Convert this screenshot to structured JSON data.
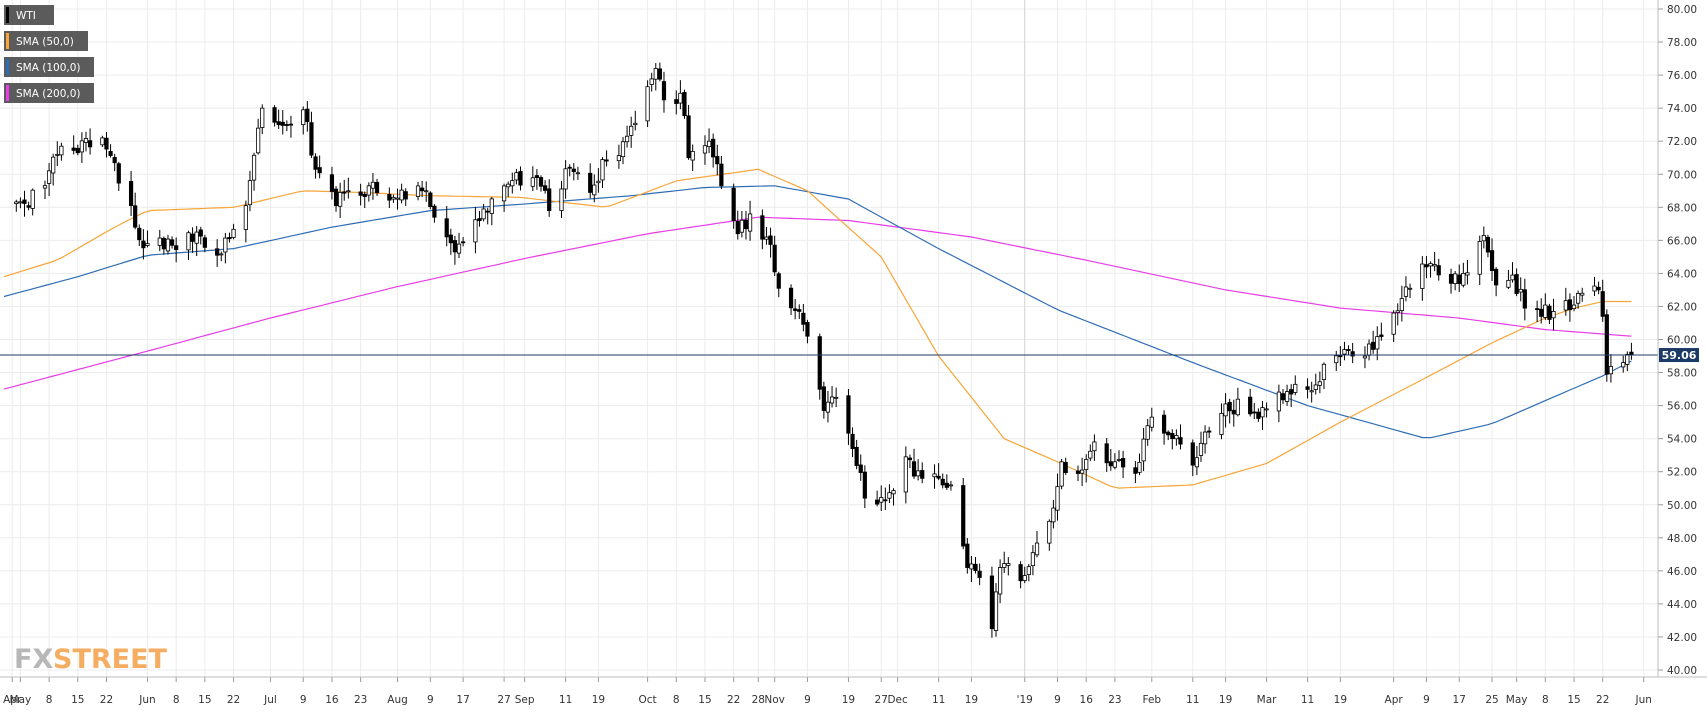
{
  "colors": {
    "background": "#ffffff",
    "grid": "#ececec",
    "candle_up_fill": "#ffffff",
    "candle_down_fill": "#000000",
    "candle_outline": "#000000",
    "price_line": "#1c3a66",
    "price_tag": "#1c3a66",
    "legend_box": "#5b5b5b",
    "sma50": "#f7a539",
    "sma100": "#2e6db4",
    "sma200": "#e83ce8"
  },
  "watermark": {
    "part1": "FX",
    "part2": "STREET"
  },
  "chart_data": {
    "type": "candlestick",
    "symbol": "WTI",
    "current_price": 59.06,
    "current_price_label": "59.06",
    "y_axis": {
      "min": 39.0,
      "max": 80.6,
      "ticks": [
        "40.00",
        "42.00",
        "44.00",
        "46.00",
        "48.00",
        "50.00",
        "52.00",
        "54.00",
        "56.00",
        "58.00",
        "60.00",
        "62.00",
        "64.00",
        "66.00",
        "68.00",
        "70.00",
        "72.00",
        "74.00",
        "76.00",
        "78.00",
        "80.00"
      ],
      "side": "right"
    },
    "x_axis": {
      "start_date": "2018-04-27",
      "end_date": "2019-06-04",
      "ticks": [
        {
          "date": "2018-04-29",
          "label": "Apr"
        },
        {
          "date": "2018-05-01",
          "label": "May"
        },
        {
          "date": "2018-05-08",
          "label": "8"
        },
        {
          "date": "2018-05-15",
          "label": "15"
        },
        {
          "date": "2018-05-22",
          "label": "22"
        },
        {
          "date": "2018-06-01",
          "label": "Jun"
        },
        {
          "date": "2018-06-08",
          "label": "8"
        },
        {
          "date": "2018-06-15",
          "label": "15"
        },
        {
          "date": "2018-06-22",
          "label": "22"
        },
        {
          "date": "2018-07-01",
          "label": "Jul"
        },
        {
          "date": "2018-07-09",
          "label": "9"
        },
        {
          "date": "2018-07-16",
          "label": "16"
        },
        {
          "date": "2018-07-23",
          "label": "23"
        },
        {
          "date": "2018-08-01",
          "label": "Aug"
        },
        {
          "date": "2018-08-09",
          "label": "9"
        },
        {
          "date": "2018-08-17",
          "label": "17"
        },
        {
          "date": "2018-08-27",
          "label": "27"
        },
        {
          "date": "2018-09-01",
          "label": "Sep"
        },
        {
          "date": "2018-09-11",
          "label": "11"
        },
        {
          "date": "2018-09-19",
          "label": "19"
        },
        {
          "date": "2018-10-01",
          "label": "Oct"
        },
        {
          "date": "2018-10-08",
          "label": "8"
        },
        {
          "date": "2018-10-15",
          "label": "15"
        },
        {
          "date": "2018-10-22",
          "label": "22"
        },
        {
          "date": "2018-10-28",
          "label": "28"
        },
        {
          "date": "2018-11-01",
          "label": "Nov"
        },
        {
          "date": "2018-11-09",
          "label": "9"
        },
        {
          "date": "2018-11-19",
          "label": "19"
        },
        {
          "date": "2018-11-27",
          "label": "27"
        },
        {
          "date": "2018-12-01",
          "label": "Dec"
        },
        {
          "date": "2018-12-11",
          "label": "11"
        },
        {
          "date": "2018-12-19",
          "label": "19"
        },
        {
          "date": "2019-01-01",
          "label": "'19"
        },
        {
          "date": "2019-01-09",
          "label": "9"
        },
        {
          "date": "2019-01-16",
          "label": "16"
        },
        {
          "date": "2019-01-23",
          "label": "23"
        },
        {
          "date": "2019-02-01",
          "label": "Feb"
        },
        {
          "date": "2019-02-11",
          "label": "11"
        },
        {
          "date": "2019-02-19",
          "label": "19"
        },
        {
          "date": "2019-03-01",
          "label": "Mar"
        },
        {
          "date": "2019-03-11",
          "label": "11"
        },
        {
          "date": "2019-03-19",
          "label": "19"
        },
        {
          "date": "2019-04-01",
          "label": "Apr"
        },
        {
          "date": "2019-04-09",
          "label": "9"
        },
        {
          "date": "2019-04-17",
          "label": "17"
        },
        {
          "date": "2019-04-25",
          "label": "25"
        },
        {
          "date": "2019-05-01",
          "label": "May"
        },
        {
          "date": "2019-05-08",
          "label": "8"
        },
        {
          "date": "2019-05-15",
          "label": "15"
        },
        {
          "date": "2019-05-22",
          "label": "22"
        },
        {
          "date": "2019-06-01",
          "label": "Jun"
        }
      ],
      "year_separator": "2019-01-01"
    },
    "legend": [
      {
        "label": "WTI",
        "color_key": "candle_down_fill"
      },
      {
        "label": "SMA (50,0)",
        "color_key": "sma50"
      },
      {
        "label": "SMA (100,0)",
        "color_key": "sma100"
      },
      {
        "label": "SMA (200,0)",
        "color_key": "sma200"
      }
    ],
    "legend_position": "top-left",
    "grid": true,
    "close_anchors": [
      [
        "2018-04-27",
        68.3
      ],
      [
        "2018-05-03",
        68.0
      ],
      [
        "2018-05-10",
        71.2
      ],
      [
        "2018-05-15",
        71.3
      ],
      [
        "2018-05-21",
        72.2
      ],
      [
        "2018-05-24",
        70.7
      ],
      [
        "2018-05-29",
        66.8
      ],
      [
        "2018-06-01",
        65.8
      ],
      [
        "2018-06-07",
        65.7
      ],
      [
        "2018-06-13",
        66.5
      ],
      [
        "2018-06-18",
        65.1
      ],
      [
        "2018-06-21",
        66.1
      ],
      [
        "2018-06-25",
        68.1
      ],
      [
        "2018-06-29",
        74.0
      ],
      [
        "2018-07-03",
        73.0
      ],
      [
        "2018-07-09",
        73.9
      ],
      [
        "2018-07-12",
        70.3
      ],
      [
        "2018-07-17",
        68.1
      ],
      [
        "2018-07-20",
        69.0
      ],
      [
        "2018-07-25",
        69.3
      ],
      [
        "2018-07-31",
        68.6
      ],
      [
        "2018-08-03",
        68.5
      ],
      [
        "2018-08-07",
        69.0
      ],
      [
        "2018-08-10",
        67.4
      ],
      [
        "2018-08-15",
        65.3
      ],
      [
        "2018-08-17",
        65.9
      ],
      [
        "2018-08-22",
        67.9
      ],
      [
        "2018-08-28",
        69.4
      ],
      [
        "2018-09-04",
        69.8
      ],
      [
        "2018-09-07",
        67.8
      ],
      [
        "2018-09-12",
        70.4
      ],
      [
        "2018-09-17",
        68.9
      ],
      [
        "2018-09-21",
        70.8
      ],
      [
        "2018-09-26",
        72.3
      ],
      [
        "2018-10-01",
        75.3
      ],
      [
        "2018-10-03",
        76.4
      ],
      [
        "2018-10-05",
        74.5
      ],
      [
        "2018-10-09",
        74.9
      ],
      [
        "2018-10-11",
        71.0
      ],
      [
        "2018-10-16",
        72.0
      ],
      [
        "2018-10-19",
        69.3
      ],
      [
        "2018-10-23",
        66.4
      ],
      [
        "2018-10-26",
        67.6
      ],
      [
        "2018-10-30",
        66.2
      ],
      [
        "2018-11-02",
        63.1
      ],
      [
        "2018-11-07",
        61.7
      ],
      [
        "2018-11-09",
        60.2
      ],
      [
        "2018-11-13",
        55.7
      ],
      [
        "2018-11-16",
        56.5
      ],
      [
        "2018-11-20",
        53.4
      ],
      [
        "2018-11-23",
        50.4
      ],
      [
        "2018-11-28",
        50.3
      ],
      [
        "2018-12-03",
        52.9
      ],
      [
        "2018-12-07",
        51.6
      ],
      [
        "2018-12-12",
        51.2
      ],
      [
        "2018-12-14",
        51.2
      ],
      [
        "2018-12-18",
        46.2
      ],
      [
        "2018-12-21",
        45.6
      ],
      [
        "2018-12-24",
        42.5
      ],
      [
        "2018-12-26",
        46.2
      ],
      [
        "2018-12-31",
        45.4
      ],
      [
        "2019-01-03",
        47.1
      ],
      [
        "2019-01-08",
        49.8
      ],
      [
        "2019-01-10",
        52.6
      ],
      [
        "2019-01-15",
        52.1
      ],
      [
        "2019-01-18",
        53.8
      ],
      [
        "2019-01-23",
        52.6
      ],
      [
        "2019-01-28",
        51.9
      ],
      [
        "2019-02-01",
        55.3
      ],
      [
        "2019-02-06",
        54.0
      ],
      [
        "2019-02-11",
        52.4
      ],
      [
        "2019-02-14",
        54.4
      ],
      [
        "2019-02-19",
        56.1
      ],
      [
        "2019-02-25",
        55.5
      ],
      [
        "2019-03-01",
        55.8
      ],
      [
        "2019-03-07",
        56.7
      ],
      [
        "2019-03-12",
        56.9
      ],
      [
        "2019-03-15",
        58.5
      ],
      [
        "2019-03-19",
        59.0
      ],
      [
        "2019-03-22",
        59.0
      ],
      [
        "2019-03-27",
        59.4
      ],
      [
        "2019-04-01",
        61.6
      ],
      [
        "2019-04-05",
        63.1
      ],
      [
        "2019-04-10",
        64.6
      ],
      [
        "2019-04-15",
        63.4
      ],
      [
        "2019-04-18",
        64.0
      ],
      [
        "2019-04-23",
        66.3
      ],
      [
        "2019-04-26",
        63.3
      ],
      [
        "2019-04-30",
        63.9
      ],
      [
        "2019-05-03",
        61.9
      ],
      [
        "2019-05-07",
        61.4
      ],
      [
        "2019-05-10",
        61.7
      ],
      [
        "2019-05-14",
        61.8
      ],
      [
        "2019-05-17",
        62.8
      ],
      [
        "2019-05-21",
        63.0
      ],
      [
        "2019-05-22",
        61.4
      ],
      [
        "2019-05-23",
        57.9
      ],
      [
        "2019-05-27",
        58.6
      ],
      [
        "2019-05-28",
        59.1
      ],
      [
        "2019-05-29",
        59.06
      ]
    ],
    "sma50_points": [
      [
        "2018-04-27",
        63.8
      ],
      [
        "2018-05-10",
        64.8
      ],
      [
        "2018-05-24",
        66.8
      ],
      [
        "2018-06-01",
        67.8
      ],
      [
        "2018-06-22",
        68.0
      ],
      [
        "2018-07-09",
        69.0
      ],
      [
        "2018-07-23",
        68.9
      ],
      [
        "2018-08-09",
        68.7
      ],
      [
        "2018-08-31",
        68.6
      ],
      [
        "2018-09-21",
        68.0
      ],
      [
        "2018-10-08",
        69.6
      ],
      [
        "2018-10-28",
        70.3
      ],
      [
        "2018-11-09",
        69.0
      ],
      [
        "2018-11-27",
        65.0
      ],
      [
        "2018-12-11",
        59.0
      ],
      [
        "2018-12-27",
        54.0
      ],
      [
        "2019-01-09",
        52.6
      ],
      [
        "2019-01-23",
        51.0
      ],
      [
        "2019-02-11",
        51.2
      ],
      [
        "2019-03-01",
        52.5
      ],
      [
        "2019-03-19",
        55.0
      ],
      [
        "2019-04-09",
        57.7
      ],
      [
        "2019-04-25",
        59.8
      ],
      [
        "2019-05-08",
        61.3
      ],
      [
        "2019-05-15",
        61.9
      ],
      [
        "2019-05-22",
        62.3
      ],
      [
        "2019-05-29",
        62.3
      ]
    ],
    "sma100_points": [
      [
        "2018-04-27",
        62.6
      ],
      [
        "2018-05-15",
        63.8
      ],
      [
        "2018-06-01",
        65.1
      ],
      [
        "2018-06-22",
        65.5
      ],
      [
        "2018-07-16",
        66.8
      ],
      [
        "2018-08-09",
        67.8
      ],
      [
        "2018-09-01",
        68.2
      ],
      [
        "2018-09-27",
        68.7
      ],
      [
        "2018-10-15",
        69.2
      ],
      [
        "2018-11-01",
        69.3
      ],
      [
        "2018-11-19",
        68.5
      ],
      [
        "2018-12-11",
        65.5
      ],
      [
        "2019-01-09",
        61.8
      ],
      [
        "2019-02-11",
        58.6
      ],
      [
        "2019-03-11",
        56.0
      ],
      [
        "2019-04-09",
        54.0
      ],
      [
        "2019-04-25",
        54.9
      ],
      [
        "2019-05-08",
        56.3
      ],
      [
        "2019-05-22",
        57.8
      ],
      [
        "2019-05-29",
        58.7
      ]
    ],
    "sma200_points": [
      [
        "2018-04-27",
        57.0
      ],
      [
        "2018-06-01",
        59.3
      ],
      [
        "2018-07-01",
        61.3
      ],
      [
        "2018-08-01",
        63.2
      ],
      [
        "2018-09-01",
        64.9
      ],
      [
        "2018-10-01",
        66.4
      ],
      [
        "2018-10-28",
        67.4
      ],
      [
        "2018-11-19",
        67.2
      ],
      [
        "2018-12-19",
        66.2
      ],
      [
        "2019-01-16",
        64.8
      ],
      [
        "2019-02-19",
        63.0
      ],
      [
        "2019-03-19",
        61.9
      ],
      [
        "2019-04-17",
        61.3
      ],
      [
        "2019-05-08",
        60.6
      ],
      [
        "2019-05-29",
        60.2
      ]
    ]
  }
}
